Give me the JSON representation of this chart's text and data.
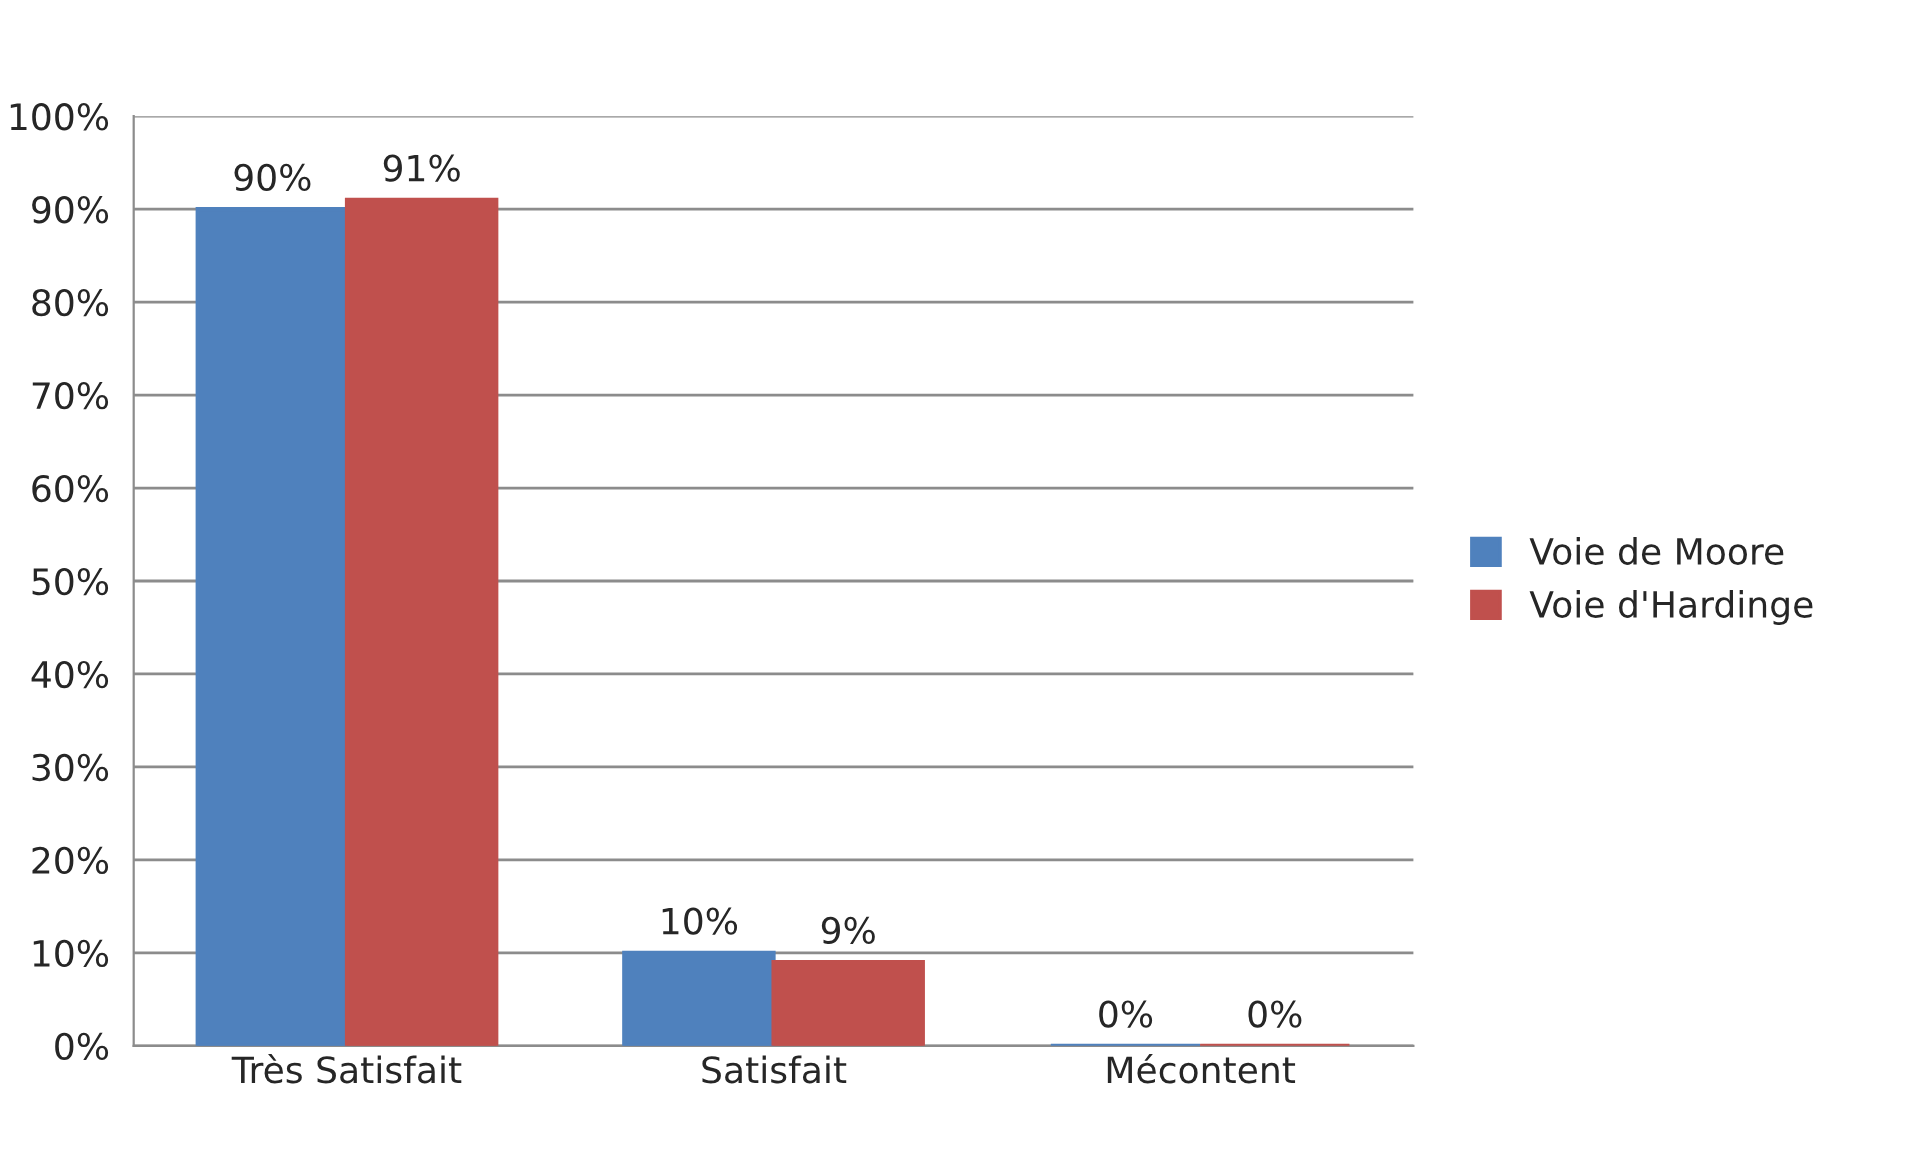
{
  "chart_data": {
    "type": "bar",
    "categories": [
      "Très Satisfait",
      "Satisfait",
      "Mécontent"
    ],
    "series": [
      {
        "name": "Voie de Moore",
        "color": "#4f81bd",
        "values": [
          90,
          10,
          0
        ],
        "value_labels": [
          "90%",
          "10%",
          "0%"
        ]
      },
      {
        "name": "Voie d'Hardinge",
        "color": "#c0504d",
        "values": [
          91,
          9,
          0
        ],
        "value_labels": [
          "91%",
          "9%",
          "0%"
        ]
      }
    ],
    "ylim": [
      0,
      100
    ],
    "yticks": [
      {
        "value": 0,
        "label": "0%"
      },
      {
        "value": 10,
        "label": "10%"
      },
      {
        "value": 20,
        "label": "20%"
      },
      {
        "value": 30,
        "label": "30%"
      },
      {
        "value": 40,
        "label": "40%"
      },
      {
        "value": 50,
        "label": "50%"
      },
      {
        "value": 60,
        "label": "60%"
      },
      {
        "value": 70,
        "label": "70%"
      },
      {
        "value": 80,
        "label": "80%"
      },
      {
        "value": 90,
        "label": "90%"
      },
      {
        "value": 100,
        "label": "100%"
      }
    ],
    "grid": "y",
    "legend": "right"
  }
}
